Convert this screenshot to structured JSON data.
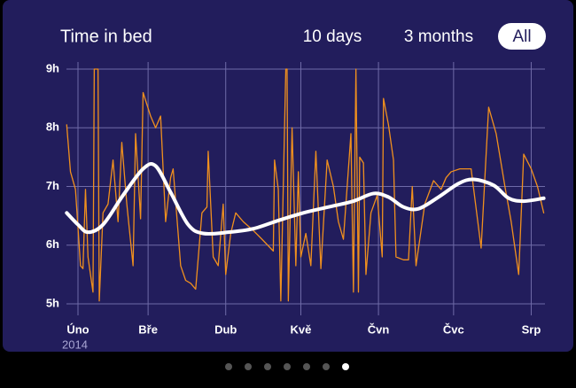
{
  "chart_data": {
    "type": "line",
    "title": "Time in bed",
    "year_label": "2014",
    "xlim": [
      -4.6,
      186.5
    ],
    "xticks": [
      {
        "value": 0,
        "label": "Úno"
      },
      {
        "value": 28,
        "label": "Bře"
      },
      {
        "value": 59,
        "label": "Dub"
      },
      {
        "value": 89,
        "label": "Kvě"
      },
      {
        "value": 120,
        "label": "Čvn"
      },
      {
        "value": 150,
        "label": "Čvc"
      },
      {
        "value": 181,
        "label": "Srp"
      }
    ],
    "ylim": [
      5,
      9
    ],
    "yticks": [
      {
        "value": 5,
        "label": "5h"
      },
      {
        "value": 6,
        "label": "6h"
      },
      {
        "value": 7,
        "label": "7h"
      },
      {
        "value": 8,
        "label": "8h"
      },
      {
        "value": 9,
        "label": "9h"
      }
    ],
    "grid": true,
    "series": [
      {
        "color": "#f0901e",
        "smooth": false,
        "x": [
          -4.5,
          -3,
          -1,
          1,
          2,
          3,
          4,
          6,
          6.5,
          8,
          8.5,
          10,
          12,
          14,
          16,
          17.5,
          19.5,
          22,
          23,
          25,
          26,
          29,
          31,
          33,
          35,
          37,
          38,
          41,
          43,
          45,
          47,
          49.5,
          51.5,
          52,
          54,
          56,
          58,
          59,
          61,
          63,
          66,
          70,
          73.5,
          78,
          78.5,
          80,
          81,
          83,
          83.5,
          84,
          85.5,
          87,
          88,
          89,
          91,
          93,
          95,
          97,
          99.5,
          102,
          104,
          106,
          109,
          110,
          111,
          112,
          112.5,
          114,
          115,
          117,
          119.5,
          121.5,
          122,
          124,
          126,
          127,
          130,
          132,
          133.5,
          135,
          138.5,
          142,
          145,
          147,
          149,
          152.5,
          157,
          161,
          164,
          167,
          170.5,
          173,
          176,
          178,
          181,
          183.5,
          186
        ],
        "values": [
          8.05,
          7.25,
          6.95,
          5.65,
          5.6,
          6.95,
          5.8,
          5.2,
          9.0,
          9.0,
          5.05,
          6.55,
          6.7,
          7.45,
          6.4,
          7.75,
          6.7,
          5.65,
          7.9,
          6.45,
          8.6,
          8.2,
          8.0,
          8.2,
          6.4,
          7.15,
          7.3,
          5.65,
          5.4,
          5.35,
          5.25,
          6.55,
          6.65,
          7.6,
          5.8,
          5.65,
          6.7,
          5.5,
          6.2,
          6.55,
          6.4,
          6.25,
          6.1,
          5.9,
          7.45,
          6.95,
          5.05,
          9.0,
          9.0,
          5.05,
          8.0,
          5.65,
          7.25,
          5.8,
          6.2,
          5.65,
          7.6,
          5.6,
          7.45,
          7.0,
          6.4,
          6.1,
          7.9,
          5.2,
          9.0,
          5.2,
          7.5,
          7.4,
          5.5,
          6.55,
          6.85,
          5.8,
          8.5,
          8.05,
          7.45,
          5.8,
          5.75,
          5.75,
          7.0,
          5.65,
          6.7,
          7.1,
          6.95,
          7.15,
          7.25,
          7.3,
          7.3,
          5.95,
          8.35,
          7.9,
          7.0,
          6.4,
          5.5,
          7.55,
          7.3,
          7.0,
          6.55
        ]
      },
      {
        "color": "#ffffff",
        "smooth": true,
        "x": [
          -4.5,
          0,
          4,
          10,
          18,
          26,
          31,
          37,
          44,
          50,
          60,
          70,
          80,
          90,
          100,
          110,
          118,
          124,
          130,
          136,
          144,
          152,
          158,
          166,
          172,
          178,
          186
        ],
        "values": [
          6.55,
          6.35,
          6.22,
          6.35,
          6.85,
          7.3,
          7.35,
          6.9,
          6.35,
          6.2,
          6.22,
          6.28,
          6.42,
          6.55,
          6.65,
          6.75,
          6.88,
          6.82,
          6.65,
          6.62,
          6.82,
          7.05,
          7.12,
          7.02,
          6.8,
          6.75,
          6.8
        ]
      }
    ]
  },
  "controls": {
    "ranges": [
      "10 days",
      "3 months",
      "All"
    ]
  }
}
